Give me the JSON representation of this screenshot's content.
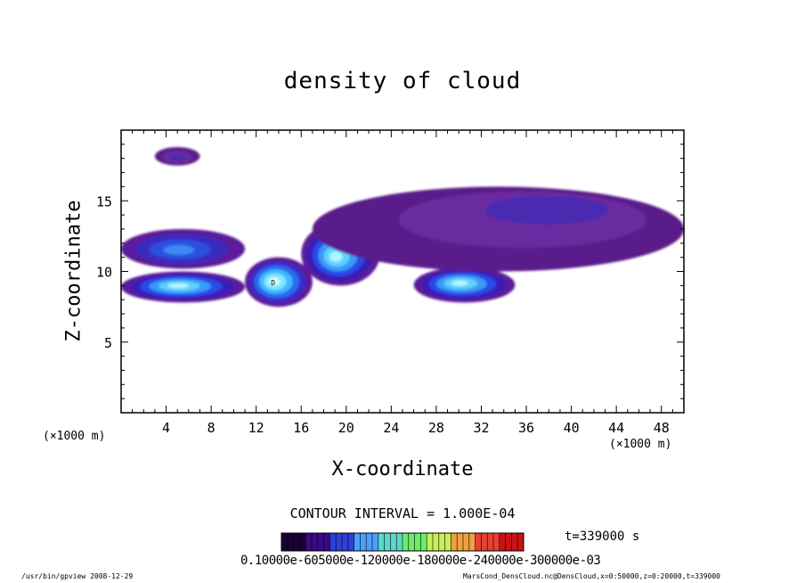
{
  "chart_data": {
    "type": "heatmap",
    "title": "density of cloud",
    "xlabel": "X-coordinate",
    "ylabel": "Z-coordinate",
    "x_unit_left": "(×1000 m)",
    "x_unit_right": "(×1000 m)",
    "xlim": [
      0,
      50
    ],
    "ylim": [
      0,
      20
    ],
    "x_ticks": [
      4,
      8,
      12,
      16,
      20,
      24,
      28,
      32,
      36,
      40,
      44,
      48
    ],
    "y_ticks": [
      5,
      10,
      15
    ],
    "contour_interval": "CONTOUR INTERVAL = 1.000E-04",
    "time_label": "t=339000 s",
    "colorbar_ticks_text": "0.10000e-605000e-120000e-180000e-240000e-300000e-03",
    "colorbar_colors": [
      "#1a0033",
      "#3a0a80",
      "#2f3fd8",
      "#4aa0ff",
      "#5ad8c8",
      "#6aee6a",
      "#c8ee5a",
      "#f0a040",
      "#e84030",
      "#c81414"
    ],
    "cloud_regions": [
      {
        "x": [
          0,
          11
        ],
        "z": [
          7.8,
          10
        ],
        "peak_x": 5,
        "peak_z": 9,
        "intensity": "high"
      },
      {
        "x": [
          11,
          17
        ],
        "z": [
          7.5,
          11
        ],
        "peak_x": 13.5,
        "peak_z": 9.3,
        "intensity": "very high"
      },
      {
        "x": [
          16,
          23
        ],
        "z": [
          9,
          13.5
        ],
        "peak_x": 19,
        "peak_z": 11,
        "intensity": "high"
      },
      {
        "x": [
          26,
          35
        ],
        "z": [
          7.8,
          10.3
        ],
        "peak_x": 30,
        "peak_z": 9.2,
        "intensity": "high"
      },
      {
        "x": [
          0,
          11
        ],
        "z": [
          10.2,
          13
        ],
        "peak_x": 5,
        "peak_z": 11.5,
        "intensity": "medium"
      },
      {
        "x": [
          17,
          50
        ],
        "z": [
          10,
          16
        ],
        "peak_x": 40,
        "peak_z": 15,
        "intensity": "low"
      },
      {
        "x": [
          3,
          7
        ],
        "z": [
          17.5,
          18.8
        ],
        "peak_x": 5,
        "peak_z": 18,
        "intensity": "low"
      }
    ],
    "marker_label": "D",
    "grid": false
  },
  "footer": {
    "left": "/usr/bin/gpview   2008-12-29",
    "right": "MarsCond_DensCloud.nc@DensCloud,x=0:50000,z=0:20000,t=339000"
  }
}
